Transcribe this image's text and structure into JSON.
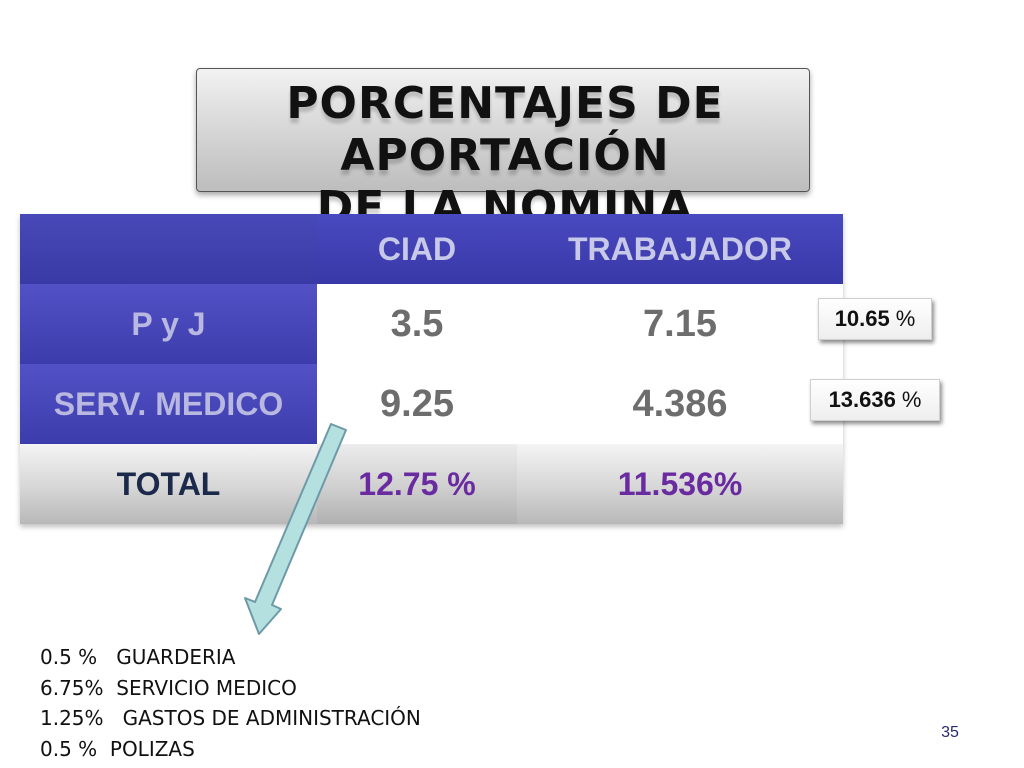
{
  "title": {
    "line1": "PORCENTAJES DE APORTACIÓN",
    "line2": "DE LA NOMINA"
  },
  "table": {
    "columns": [
      "",
      "CIAD",
      "TRABAJADOR"
    ],
    "rows": [
      {
        "label": "P y J",
        "ciad": "3.5",
        "trabajador": "7.15"
      },
      {
        "label": "SERV.  MEDICO",
        "ciad": "9.25",
        "trabajador": "4.386"
      }
    ],
    "total": {
      "label": "TOTAL",
      "ciad": "12.75 %",
      "trabajador": "11.536%"
    }
  },
  "row_sums": [
    {
      "value": "10.65",
      "unit": "%"
    },
    {
      "value": "13.636",
      "unit": "%"
    }
  ],
  "notes": [
    "0.5 %   GUARDERIA",
    "6.75%  SERVICIO MEDICO",
    "1.25%   GASTOS DE ADMINISTRACIÓN",
    "0.5 %  POLIZAS"
  ],
  "page_number": "35",
  "colors": {
    "header_blue": "#3e3eac",
    "total_text": "#6a2aa0",
    "arrow_fill": "#b4e0e0"
  }
}
